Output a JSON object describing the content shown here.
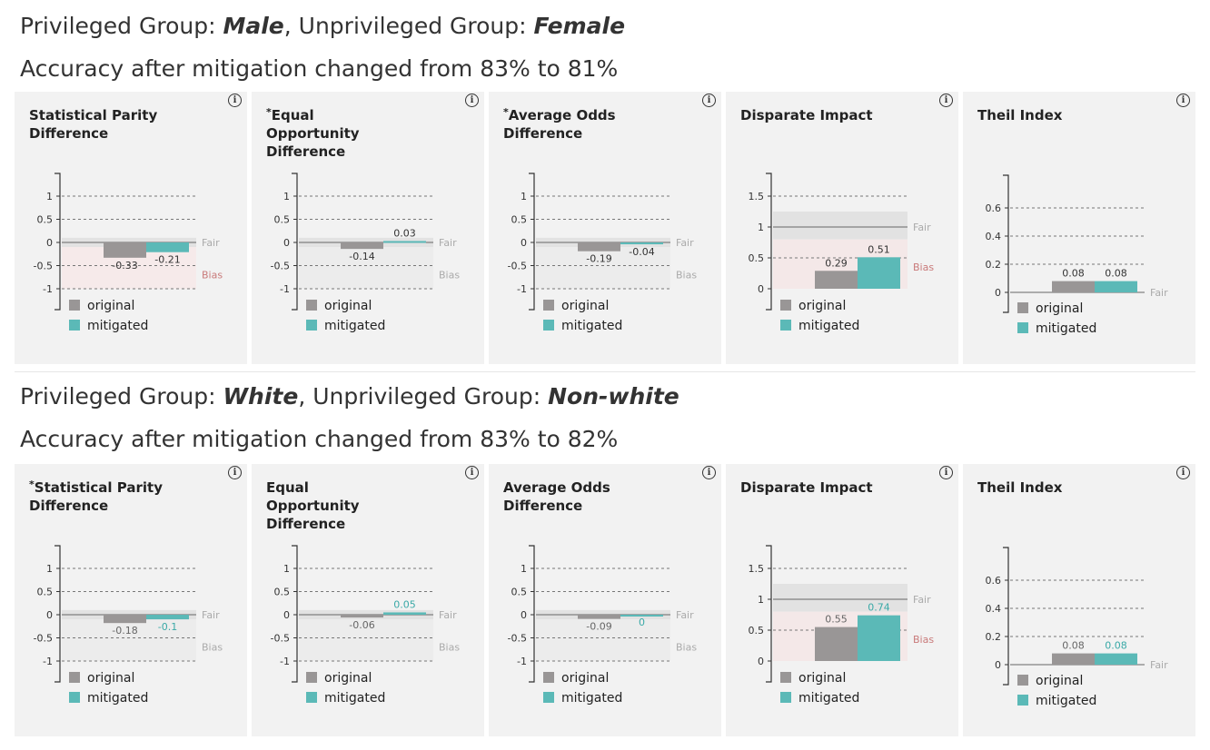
{
  "colors": {
    "original": "#999696",
    "mitigated": "#5bb9b7",
    "bias_label": "#c97a7a",
    "neutral_label": "#aaaaaa",
    "panel_bg": "#f2f2f2"
  },
  "sections": [
    {
      "prefix1": "Privileged Group: ",
      "privileged": "Male",
      "mid": ", Unprivileged Group: ",
      "unprivileged": "Female",
      "accuracy_text": "Accuracy after mitigation changed from 83% to 81%",
      "panels": [
        {
          "title_mark": "",
          "title": "Statistical Parity Difference",
          "info": "i",
          "legend_original": "original",
          "legend_mitigated": "mitigated"
        },
        {
          "title_mark": "*",
          "title": "Equal Opportunity Difference",
          "info": "i",
          "legend_original": "original",
          "legend_mitigated": "mitigated"
        },
        {
          "title_mark": "*",
          "title": "Average Odds Difference",
          "info": "i",
          "legend_original": "original",
          "legend_mitigated": "mitigated"
        },
        {
          "title_mark": "",
          "title": "Disparate Impact",
          "info": "i",
          "legend_original": "original",
          "legend_mitigated": "mitigated"
        },
        {
          "title_mark": "",
          "title": "Theil Index",
          "info": "i",
          "legend_original": "original",
          "legend_mitigated": "mitigated"
        }
      ]
    },
    {
      "prefix1": "Privileged Group: ",
      "privileged": "White",
      "mid": ", Unprivileged Group: ",
      "unprivileged": "Non-white",
      "accuracy_text": "Accuracy after mitigation changed from 83% to 82%",
      "panels": [
        {
          "title_mark": "*",
          "title": "Statistical Parity Difference",
          "info": "i",
          "legend_original": "original",
          "legend_mitigated": "mitigated"
        },
        {
          "title_mark": "",
          "title": "Equal Opportunity Difference",
          "info": "i",
          "legend_original": "original",
          "legend_mitigated": "mitigated"
        },
        {
          "title_mark": "",
          "title": "Average Odds Difference",
          "info": "i",
          "legend_original": "original",
          "legend_mitigated": "mitigated"
        },
        {
          "title_mark": "",
          "title": "Disparate Impact",
          "info": "i",
          "legend_original": "original",
          "legend_mitigated": "mitigated"
        },
        {
          "title_mark": "",
          "title": "Theil Index",
          "info": "i",
          "legend_original": "original",
          "legend_mitigated": "mitigated"
        }
      ]
    }
  ],
  "chart_data": [
    {
      "type": "bar",
      "title": "Statistical Parity Difference",
      "kind": "diff",
      "ylim": [
        -1,
        1
      ],
      "ticks": [
        "1",
        "0.5",
        "0",
        "-0.5",
        "-1"
      ],
      "tick_values": [
        1,
        0.5,
        0,
        -0.5,
        -1
      ],
      "fair_band": [
        -0.1,
        0.1
      ],
      "fair_label": "Fair",
      "bias_label": "Bias",
      "bias_colored": true,
      "series": [
        {
          "name": "original",
          "value": -0.33,
          "label": "-0.33"
        },
        {
          "name": "mitigated",
          "value": -0.21,
          "label": "-0.21"
        }
      ],
      "mitigated_label_color": "dark",
      "grid": true
    },
    {
      "type": "bar",
      "title": "Equal Opportunity Difference",
      "kind": "diff",
      "ylim": [
        -1,
        1
      ],
      "ticks": [
        "1",
        "0.5",
        "0",
        "-0.5",
        "-1"
      ],
      "tick_values": [
        1,
        0.5,
        0,
        -0.5,
        -1
      ],
      "fair_band": [
        -0.1,
        0.1
      ],
      "fair_label": "Fair",
      "bias_label": "Bias",
      "bias_colored": false,
      "series": [
        {
          "name": "original",
          "value": -0.14,
          "label": "-0.14"
        },
        {
          "name": "mitigated",
          "value": 0.03,
          "label": "0.03"
        }
      ],
      "mitigated_label_color": "dark",
      "grid": true
    },
    {
      "type": "bar",
      "title": "Average Odds Difference",
      "kind": "diff",
      "ylim": [
        -1,
        1
      ],
      "ticks": [
        "1",
        "0.5",
        "0",
        "-0.5",
        "-1"
      ],
      "tick_values": [
        1,
        0.5,
        0,
        -0.5,
        -1
      ],
      "fair_band": [
        -0.1,
        0.1
      ],
      "fair_label": "Fair",
      "bias_label": "Bias",
      "bias_colored": false,
      "series": [
        {
          "name": "original",
          "value": -0.19,
          "label": "-0.19"
        },
        {
          "name": "mitigated",
          "value": -0.04,
          "label": "-0.04"
        }
      ],
      "mitigated_label_color": "dark",
      "grid": true
    },
    {
      "type": "bar",
      "title": "Disparate Impact",
      "kind": "di",
      "ylim": [
        0,
        1.5
      ],
      "ticks": [
        "1.5",
        "1",
        "0.5",
        "0"
      ],
      "tick_values": [
        1.5,
        1,
        0.5,
        0
      ],
      "fair_band": [
        0.8,
        1.25
      ],
      "fair_label": "Fair",
      "bias_label": "Bias",
      "bias_colored": true,
      "series": [
        {
          "name": "original",
          "value": 0.29,
          "label": "0.29"
        },
        {
          "name": "mitigated",
          "value": 0.51,
          "label": "0.51"
        }
      ],
      "mitigated_label_color": "dark",
      "grid": true
    },
    {
      "type": "bar",
      "title": "Theil Index",
      "kind": "theil",
      "ylim": [
        0,
        0.6
      ],
      "ticks": [
        "0.6",
        "0.4",
        "0.2",
        "0"
      ],
      "tick_values": [
        0.6,
        0.4,
        0.2,
        0
      ],
      "fair_label": "Fair",
      "series": [
        {
          "name": "original",
          "value": 0.08,
          "label": "0.08"
        },
        {
          "name": "mitigated",
          "value": 0.08,
          "label": "0.08"
        }
      ],
      "mitigated_label_color": "dark",
      "grid": true
    },
    {
      "type": "bar",
      "title": "Statistical Parity Difference",
      "kind": "diff",
      "ylim": [
        -1,
        1
      ],
      "ticks": [
        "1",
        "0.5",
        "0",
        "-0.5",
        "-1"
      ],
      "tick_values": [
        1,
        0.5,
        0,
        -0.5,
        -1
      ],
      "fair_band": [
        -0.1,
        0.1
      ],
      "fair_label": "Fair",
      "bias_label": "Bias",
      "bias_colored": false,
      "series": [
        {
          "name": "original",
          "value": -0.18,
          "label": "-0.18"
        },
        {
          "name": "mitigated",
          "value": -0.1,
          "label": "-0.1"
        }
      ],
      "mitigated_label_color": "teal",
      "grid": true
    },
    {
      "type": "bar",
      "title": "Equal Opportunity Difference",
      "kind": "diff",
      "ylim": [
        -1,
        1
      ],
      "ticks": [
        "1",
        "0.5",
        "0",
        "-0.5",
        "-1"
      ],
      "tick_values": [
        1,
        0.5,
        0,
        -0.5,
        -1
      ],
      "fair_band": [
        -0.1,
        0.1
      ],
      "fair_label": "Fair",
      "bias_label": "Bias",
      "bias_colored": false,
      "series": [
        {
          "name": "original",
          "value": -0.06,
          "label": "-0.06"
        },
        {
          "name": "mitigated",
          "value": 0.05,
          "label": "0.05"
        }
      ],
      "mitigated_label_color": "teal",
      "grid": true
    },
    {
      "type": "bar",
      "title": "Average Odds Difference",
      "kind": "diff",
      "ylim": [
        -1,
        1
      ],
      "ticks": [
        "1",
        "0.5",
        "0",
        "-0.5",
        "-1"
      ],
      "tick_values": [
        1,
        0.5,
        0,
        -0.5,
        -1
      ],
      "fair_band": [
        -0.1,
        0.1
      ],
      "fair_label": "Fair",
      "bias_label": "Bias",
      "bias_colored": false,
      "series": [
        {
          "name": "original",
          "value": -0.09,
          "label": "-0.09"
        },
        {
          "name": "mitigated",
          "value": 0,
          "label": "0"
        }
      ],
      "mitigated_label_color": "teal",
      "grid": true
    },
    {
      "type": "bar",
      "title": "Disparate Impact",
      "kind": "di",
      "ylim": [
        0,
        1.5
      ],
      "ticks": [
        "1.5",
        "1",
        "0.5",
        "0"
      ],
      "tick_values": [
        1.5,
        1,
        0.5,
        0
      ],
      "fair_band": [
        0.8,
        1.25
      ],
      "fair_label": "Fair",
      "bias_label": "Bias",
      "bias_colored": true,
      "series": [
        {
          "name": "original",
          "value": 0.55,
          "label": "0.55"
        },
        {
          "name": "mitigated",
          "value": 0.74,
          "label": "0.74"
        }
      ],
      "mitigated_label_color": "teal",
      "grid": true
    },
    {
      "type": "bar",
      "title": "Theil Index",
      "kind": "theil",
      "ylim": [
        0,
        0.6
      ],
      "ticks": [
        "0.6",
        "0.4",
        "0.2",
        "0"
      ],
      "tick_values": [
        0.6,
        0.4,
        0.2,
        0
      ],
      "fair_label": "Fair",
      "series": [
        {
          "name": "original",
          "value": 0.08,
          "label": "0.08"
        },
        {
          "name": "mitigated",
          "value": 0.08,
          "label": "0.08"
        }
      ],
      "mitigated_label_color": "teal",
      "grid": true
    }
  ]
}
